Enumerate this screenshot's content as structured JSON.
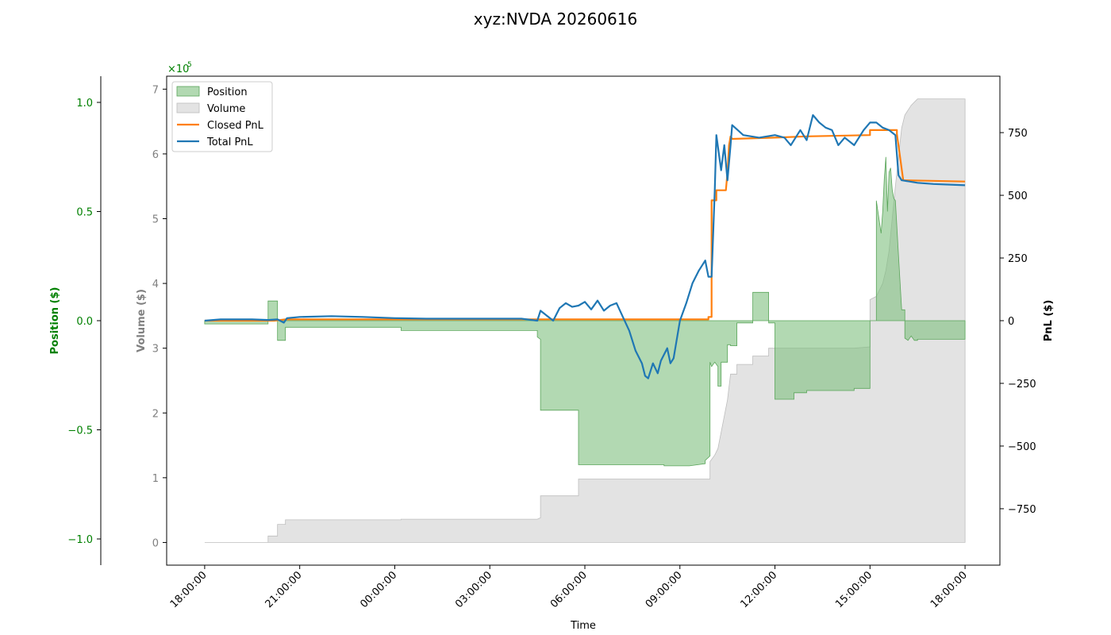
{
  "chart_data": {
    "type": "line",
    "title": "xyz:NVDA 20260616",
    "xlabel": "Time",
    "x_ticks": [
      "18:00:00",
      "21:00:00",
      "00:00:00",
      "03:00:00",
      "06:00:00",
      "09:00:00",
      "12:00:00",
      "15:00:00",
      "18:00:00"
    ],
    "x_range_hours": [
      -1.2,
      25.1
    ],
    "axes": {
      "position": {
        "label": "Position ($)",
        "color": "#008000",
        "ylim": [
          -1.12,
          1.12
        ],
        "multiplier_label": "×10",
        "multiplier_exp": "5",
        "ticks": [
          {
            "v": 1.0,
            "label": "1.0"
          },
          {
            "v": 0.5,
            "label": "0.5"
          },
          {
            "v": 0.0,
            "label": "0.0"
          },
          {
            "v": -0.5,
            "label": "−0.5"
          },
          {
            "v": -1.0,
            "label": "−1.0"
          }
        ]
      },
      "volume": {
        "label": "Volume ($)",
        "color": "#808080",
        "ylim": [
          -0.35,
          7.2
        ],
        "multiplier_label": "×10",
        "multiplier_exp": "5",
        "ticks": [
          {
            "v": 0,
            "label": "0"
          },
          {
            "v": 1,
            "label": "1"
          },
          {
            "v": 2,
            "label": "2"
          },
          {
            "v": 3,
            "label": "3"
          },
          {
            "v": 4,
            "label": "4"
          },
          {
            "v": 5,
            "label": "5"
          },
          {
            "v": 6,
            "label": "6"
          },
          {
            "v": 7,
            "label": "7"
          }
        ]
      },
      "pnl": {
        "label": "PnL ($)",
        "color": "#000000",
        "ylim": [
          -975,
          975
        ],
        "ticks": [
          {
            "v": 750,
            "label": "750"
          },
          {
            "v": 500,
            "label": "500"
          },
          {
            "v": 250,
            "label": "250"
          },
          {
            "v": 0,
            "label": "0"
          },
          {
            "v": -250,
            "label": "−250"
          },
          {
            "v": -500,
            "label": "−500"
          },
          {
            "v": -750,
            "label": "−750"
          }
        ]
      }
    },
    "legend_position": "upper-left",
    "series": [
      {
        "name": "Position",
        "kind": "fill",
        "axis": "position",
        "color": "#7fbf7f",
        "points": [
          [
            0,
            -0.015
          ],
          [
            2.0,
            -0.015
          ],
          [
            2.0,
            0.09
          ],
          [
            2.3,
            0.09
          ],
          [
            2.3,
            -0.09
          ],
          [
            2.55,
            -0.09
          ],
          [
            2.55,
            -0.03
          ],
          [
            6.2,
            -0.03
          ],
          [
            6.2,
            -0.045
          ],
          [
            10.5,
            -0.045
          ],
          [
            10.5,
            -0.075
          ],
          [
            10.6,
            -0.085
          ],
          [
            10.6,
            -0.41
          ],
          [
            11.8,
            -0.41
          ],
          [
            11.8,
            -0.66
          ],
          [
            14.5,
            -0.66
          ],
          [
            14.5,
            -0.665
          ],
          [
            15.3,
            -0.665
          ],
          [
            15.8,
            -0.655
          ],
          [
            15.8,
            -0.64
          ],
          [
            15.95,
            -0.62
          ],
          [
            15.95,
            -0.19
          ],
          [
            16.0,
            -0.21
          ],
          [
            16.1,
            -0.19
          ],
          [
            16.2,
            -0.21
          ],
          [
            16.2,
            -0.3
          ],
          [
            16.3,
            -0.3
          ],
          [
            16.3,
            -0.19
          ],
          [
            16.5,
            -0.19
          ],
          [
            16.5,
            -0.11
          ],
          [
            16.6,
            -0.11
          ],
          [
            16.6,
            -0.115
          ],
          [
            16.65,
            -0.115
          ],
          [
            16.8,
            -0.115
          ],
          [
            16.8,
            -0.01
          ],
          [
            17.3,
            -0.01
          ],
          [
            17.3,
            0.13
          ],
          [
            17.8,
            0.13
          ],
          [
            17.8,
            -0.01
          ],
          [
            18.0,
            -0.01
          ],
          [
            18.0,
            -0.36
          ],
          [
            18.6,
            -0.36
          ],
          [
            18.6,
            -0.33
          ],
          [
            18.6,
            -0.33
          ],
          [
            19.0,
            -0.33
          ],
          [
            19.0,
            -0.32
          ],
          [
            20.5,
            -0.32
          ],
          [
            20.5,
            -0.31
          ],
          [
            21.0,
            -0.31
          ],
          [
            21.0,
            0.0
          ],
          [
            21.2,
            0.0
          ],
          [
            21.2,
            0.55
          ],
          [
            21.35,
            0.4
          ],
          [
            21.4,
            0.5
          ],
          [
            21.45,
            0.65
          ],
          [
            21.5,
            0.75
          ],
          [
            21.55,
            0.5
          ],
          [
            21.6,
            0.68
          ],
          [
            21.65,
            0.7
          ],
          [
            21.7,
            0.6
          ],
          [
            21.75,
            0.56
          ],
          [
            21.8,
            0.55
          ],
          [
            21.9,
            0.3
          ],
          [
            22.0,
            0.05
          ],
          [
            22.1,
            0.05
          ],
          [
            22.1,
            -0.08
          ],
          [
            22.2,
            -0.09
          ],
          [
            22.3,
            -0.07
          ],
          [
            22.4,
            -0.09
          ],
          [
            22.5,
            -0.09
          ],
          [
            22.5,
            -0.085
          ],
          [
            24.0,
            -0.085
          ],
          [
            24.0,
            0.0
          ]
        ]
      },
      {
        "name": "Volume",
        "kind": "fill",
        "axis": "volume",
        "color": "#cccccc",
        "points": [
          [
            0,
            0
          ],
          [
            2.0,
            0
          ],
          [
            2.0,
            0.1
          ],
          [
            2.3,
            0.1
          ],
          [
            2.3,
            0.28
          ],
          [
            2.55,
            0.28
          ],
          [
            2.55,
            0.35
          ],
          [
            6.2,
            0.35
          ],
          [
            6.2,
            0.36
          ],
          [
            10.5,
            0.36
          ],
          [
            10.6,
            0.38
          ],
          [
            10.6,
            0.72
          ],
          [
            11.8,
            0.72
          ],
          [
            11.8,
            0.98
          ],
          [
            15.95,
            0.98
          ],
          [
            15.95,
            1.25
          ],
          [
            16.1,
            1.35
          ],
          [
            16.2,
            1.45
          ],
          [
            16.3,
            1.7
          ],
          [
            16.5,
            2.2
          ],
          [
            16.6,
            2.6
          ],
          [
            16.8,
            2.6
          ],
          [
            16.8,
            2.75
          ],
          [
            17.3,
            2.75
          ],
          [
            17.3,
            2.88
          ],
          [
            17.8,
            2.88
          ],
          [
            17.8,
            3.0
          ],
          [
            18.6,
            3.0
          ],
          [
            20.5,
            3.0
          ],
          [
            21.0,
            3.02
          ],
          [
            21.0,
            3.75
          ],
          [
            21.2,
            3.8
          ],
          [
            21.4,
            4.0
          ],
          [
            21.5,
            4.2
          ],
          [
            21.6,
            4.5
          ],
          [
            21.8,
            5.5
          ],
          [
            22.0,
            6.4
          ],
          [
            22.1,
            6.6
          ],
          [
            22.3,
            6.75
          ],
          [
            22.5,
            6.85
          ],
          [
            24.0,
            6.85
          ],
          [
            24.0,
            0
          ]
        ]
      },
      {
        "name": "Closed PnL",
        "kind": "line",
        "axis": "pnl",
        "color": "#ff7f0e",
        "points": [
          [
            0,
            0
          ],
          [
            2.2,
            0
          ],
          [
            2.55,
            5
          ],
          [
            15.9,
            5
          ],
          [
            15.9,
            15
          ],
          [
            16.0,
            15
          ],
          [
            16.0,
            480
          ],
          [
            16.15,
            480
          ],
          [
            16.15,
            520
          ],
          [
            16.45,
            520
          ],
          [
            16.5,
            590
          ],
          [
            16.55,
            700
          ],
          [
            16.6,
            735
          ],
          [
            16.65,
            725
          ],
          [
            18.0,
            730
          ],
          [
            19.0,
            735
          ],
          [
            21.0,
            740
          ],
          [
            21.0,
            760
          ],
          [
            21.85,
            760
          ],
          [
            21.85,
            745
          ],
          [
            22.05,
            560
          ],
          [
            24.0,
            555
          ]
        ]
      },
      {
        "name": "Total PnL",
        "kind": "line",
        "axis": "pnl",
        "color": "#1f77b4",
        "points": [
          [
            0,
            0
          ],
          [
            0.5,
            5
          ],
          [
            1.5,
            5
          ],
          [
            2.0,
            3
          ],
          [
            2.3,
            5
          ],
          [
            2.5,
            -8
          ],
          [
            2.6,
            10
          ],
          [
            3.0,
            15
          ],
          [
            4.0,
            18
          ],
          [
            5.0,
            15
          ],
          [
            6.0,
            10
          ],
          [
            7.0,
            8
          ],
          [
            8.0,
            8
          ],
          [
            9.0,
            8
          ],
          [
            10.0,
            8
          ],
          [
            10.5,
            0
          ],
          [
            10.6,
            40
          ],
          [
            10.8,
            20
          ],
          [
            11.0,
            0
          ],
          [
            11.2,
            50
          ],
          [
            11.4,
            70
          ],
          [
            11.6,
            55
          ],
          [
            11.8,
            60
          ],
          [
            12.0,
            75
          ],
          [
            12.2,
            45
          ],
          [
            12.4,
            80
          ],
          [
            12.6,
            40
          ],
          [
            12.8,
            60
          ],
          [
            13.0,
            70
          ],
          [
            13.2,
            15
          ],
          [
            13.4,
            -40
          ],
          [
            13.6,
            -120
          ],
          [
            13.8,
            -170
          ],
          [
            13.9,
            -220
          ],
          [
            14.0,
            -230
          ],
          [
            14.15,
            -170
          ],
          [
            14.3,
            -210
          ],
          [
            14.4,
            -160
          ],
          [
            14.6,
            -110
          ],
          [
            14.7,
            -170
          ],
          [
            14.8,
            -150
          ],
          [
            15.0,
            0
          ],
          [
            15.2,
            70
          ],
          [
            15.4,
            150
          ],
          [
            15.6,
            200
          ],
          [
            15.8,
            240
          ],
          [
            15.9,
            175
          ],
          [
            16.0,
            175
          ],
          [
            16.1,
            520
          ],
          [
            16.15,
            740
          ],
          [
            16.3,
            600
          ],
          [
            16.4,
            700
          ],
          [
            16.5,
            560
          ],
          [
            16.6,
            700
          ],
          [
            16.65,
            780
          ],
          [
            17.0,
            740
          ],
          [
            17.5,
            730
          ],
          [
            18.0,
            740
          ],
          [
            18.3,
            730
          ],
          [
            18.5,
            700
          ],
          [
            18.8,
            760
          ],
          [
            19.0,
            720
          ],
          [
            19.2,
            820
          ],
          [
            19.4,
            790
          ],
          [
            19.6,
            770
          ],
          [
            19.8,
            760
          ],
          [
            20.0,
            700
          ],
          [
            20.2,
            730
          ],
          [
            20.5,
            700
          ],
          [
            20.8,
            760
          ],
          [
            21.0,
            790
          ],
          [
            21.2,
            790
          ],
          [
            21.4,
            770
          ],
          [
            21.6,
            760
          ],
          [
            21.8,
            740
          ],
          [
            21.9,
            580
          ],
          [
            22.0,
            560
          ],
          [
            22.5,
            550
          ],
          [
            23.0,
            545
          ],
          [
            24.0,
            540
          ]
        ]
      }
    ]
  }
}
